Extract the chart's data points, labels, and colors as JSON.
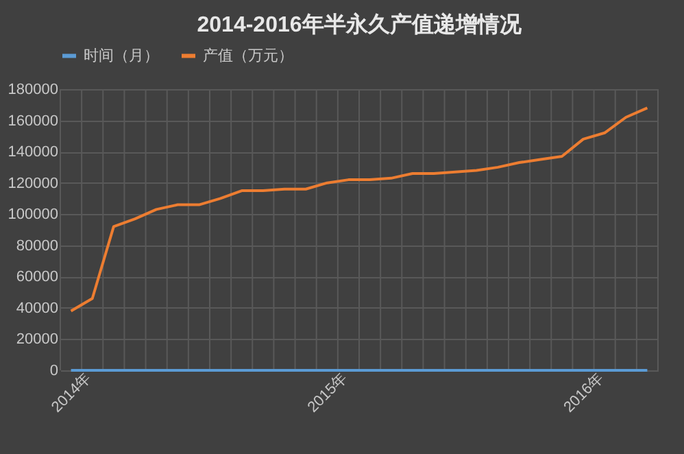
{
  "chart_data": {
    "type": "line",
    "title": "2014-2016年半永久产值递增情况",
    "categories": [
      "2014年",
      null,
      null,
      null,
      null,
      null,
      null,
      null,
      null,
      null,
      null,
      null,
      "2015年",
      null,
      null,
      null,
      null,
      null,
      null,
      null,
      null,
      null,
      null,
      null,
      "2016年",
      null,
      null,
      null
    ],
    "series": [
      {
        "name": "时间（月）",
        "color": "#5b9bd5",
        "values": [
          0,
          0,
          0,
          0,
          0,
          0,
          0,
          0,
          0,
          0,
          0,
          0,
          0,
          0,
          0,
          0,
          0,
          0,
          0,
          0,
          0,
          0,
          0,
          0,
          0,
          0,
          0,
          0
        ]
      },
      {
        "name": "产值（万元）",
        "color": "#ed7d31",
        "values": [
          38000,
          46000,
          92000,
          97000,
          103000,
          106000,
          106000,
          110000,
          115000,
          115000,
          116000,
          116000,
          120000,
          122000,
          122000,
          123000,
          126000,
          126000,
          127000,
          128000,
          130000,
          133000,
          135000,
          137000,
          148000,
          152000,
          162000,
          168000
        ]
      }
    ],
    "ylim": [
      0,
      180000
    ],
    "yticks": [
      0,
      20000,
      40000,
      60000,
      80000,
      100000,
      120000,
      140000,
      160000,
      180000
    ],
    "grid": true,
    "legend": "top",
    "marker": "none",
    "line_style": "solid"
  }
}
